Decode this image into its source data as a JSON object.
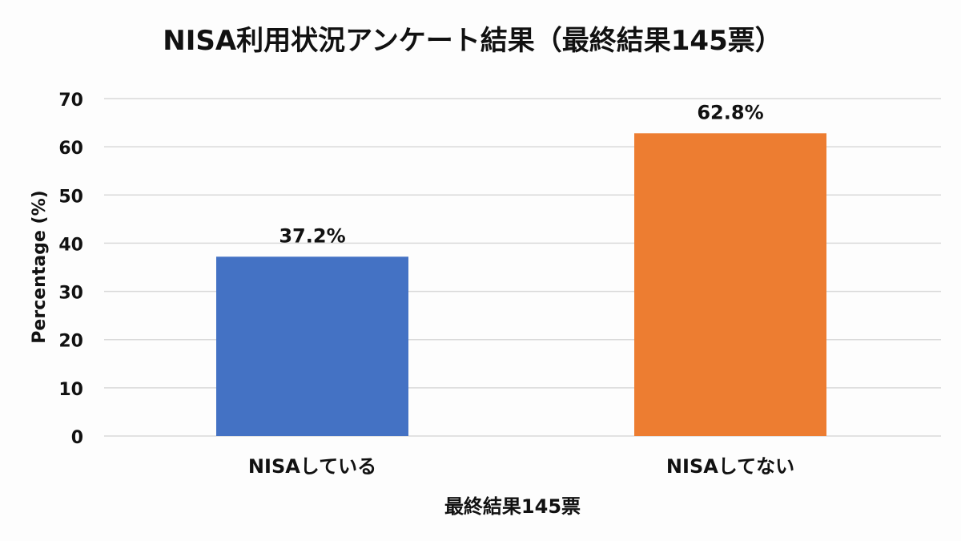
{
  "chart_data": {
    "type": "bar",
    "title": "NISA利用状況アンケート結果（最終結果145票）",
    "xlabel": "最終結果145票",
    "ylabel": "Percentage (%)",
    "categories": [
      "NISAしている",
      "NISAしてない"
    ],
    "values": [
      37.2,
      62.8
    ],
    "data_labels": [
      "37.2%",
      "62.8%"
    ],
    "colors": [
      "#4472c4",
      "#ed7d31"
    ],
    "ylim": [
      0,
      70
    ],
    "yticks": [
      "0",
      "10",
      "20",
      "30",
      "40",
      "50",
      "60",
      "70"
    ],
    "grid": true
  }
}
